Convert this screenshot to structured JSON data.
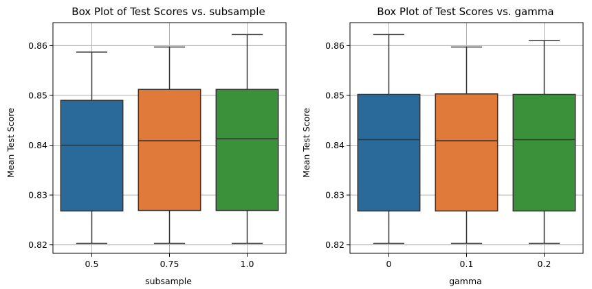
{
  "chart_data": [
    {
      "type": "box",
      "title": "Box Plot of Test Scores vs. subsample",
      "xlabel": "subsample",
      "ylabel": "Mean Test Score",
      "categories": [
        "0.5",
        "0.75",
        "1.0"
      ],
      "ylim": [
        0.8183,
        0.8646
      ],
      "yticks": [
        0.82,
        0.83,
        0.84,
        0.85,
        0.86
      ],
      "ytick_labels": [
        "0.82",
        "0.83",
        "0.84",
        "0.85",
        "0.86"
      ],
      "grid": true,
      "boxes": [
        {
          "category": "0.5",
          "whislo": 0.8203,
          "q1": 0.8268,
          "median": 0.84,
          "q3": 0.849,
          "whishi": 0.8587,
          "color": "#2a6a9a"
        },
        {
          "category": "0.75",
          "whislo": 0.8203,
          "q1": 0.8269,
          "median": 0.8409,
          "q3": 0.8512,
          "whishi": 0.8597,
          "color": "#e07a3a"
        },
        {
          "category": "1.0",
          "whislo": 0.8203,
          "q1": 0.8269,
          "median": 0.8413,
          "q3": 0.8512,
          "whishi": 0.8622,
          "color": "#3a913a"
        }
      ]
    },
    {
      "type": "box",
      "title": "Box Plot of Test Scores vs. gamma",
      "xlabel": "gamma",
      "ylabel": "Mean Test Score",
      "categories": [
        "0",
        "0.1",
        "0.2"
      ],
      "ylim": [
        0.8183,
        0.8646
      ],
      "yticks": [
        0.82,
        0.83,
        0.84,
        0.85,
        0.86
      ],
      "ytick_labels": [
        "0.82",
        "0.83",
        "0.84",
        "0.85",
        "0.86"
      ],
      "grid": true,
      "boxes": [
        {
          "category": "0",
          "whislo": 0.8203,
          "q1": 0.8268,
          "median": 0.8411,
          "q3": 0.8502,
          "whishi": 0.8622,
          "color": "#2a6a9a"
        },
        {
          "category": "0.1",
          "whislo": 0.8203,
          "q1": 0.8268,
          "median": 0.8409,
          "q3": 0.8503,
          "whishi": 0.8597,
          "color": "#e07a3a"
        },
        {
          "category": "0.2",
          "whislo": 0.8203,
          "q1": 0.8268,
          "median": 0.8411,
          "q3": 0.8502,
          "whishi": 0.861,
          "color": "#3a913a"
        }
      ]
    }
  ]
}
